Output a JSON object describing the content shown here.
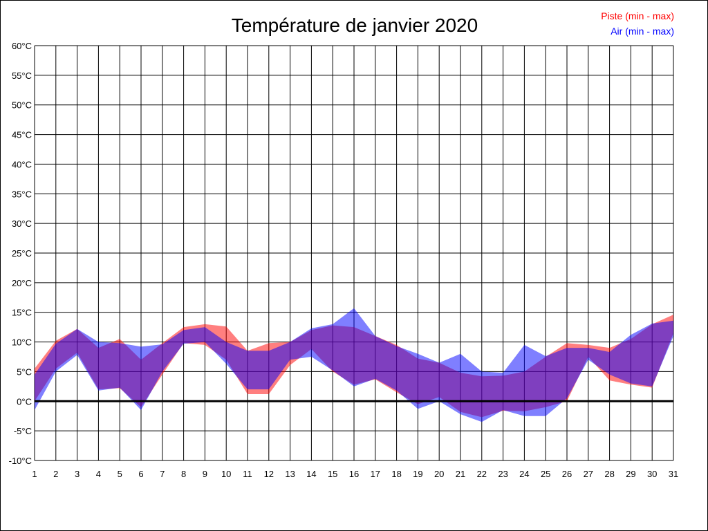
{
  "chart_data": {
    "type": "area",
    "title": "Température de janvier 2020",
    "xlabel": "",
    "ylabel": "",
    "x": [
      1,
      2,
      3,
      4,
      5,
      6,
      7,
      8,
      9,
      10,
      11,
      12,
      13,
      14,
      15,
      16,
      17,
      18,
      19,
      20,
      21,
      22,
      23,
      24,
      25,
      26,
      27,
      28,
      29,
      30,
      31
    ],
    "ylim": [
      -10,
      60
    ],
    "yticks": [
      -10,
      -5,
      0,
      5,
      10,
      15,
      20,
      25,
      30,
      35,
      40,
      45,
      50,
      55,
      60
    ],
    "ytick_suffix": "°C",
    "grid": true,
    "legend_position": "top-right",
    "series": [
      {
        "name": "Piste (min - max)",
        "color": "#ff0000",
        "max": [
          5.5,
          10.2,
          12.2,
          9,
          10.5,
          7,
          9.8,
          12.5,
          13,
          12.6,
          8.5,
          9.8,
          10,
          12,
          12.8,
          12.5,
          11,
          9.5,
          7.2,
          6.5,
          4.8,
          4.2,
          4.3,
          5,
          7.5,
          9.8,
          9.5,
          9,
          10.5,
          13,
          14.6
        ],
        "min": [
          0,
          5.5,
          8.2,
          2,
          2.2,
          -1,
          4.5,
          9.8,
          9.5,
          7,
          1.2,
          1.2,
          6.1,
          8.8,
          5,
          2.8,
          3.7,
          1.5,
          -0.5,
          0.7,
          -1.8,
          -2.7,
          -1.6,
          -1.7,
          -1,
          0,
          7.5,
          3.5,
          2.8,
          2.3,
          11.5
        ]
      },
      {
        "name": "Air (min - max)",
        "color": "#0000ff",
        "max": [
          4.5,
          9.7,
          12.2,
          10,
          9.8,
          9.2,
          9.6,
          12,
          12.5,
          10,
          8.5,
          8.5,
          10,
          12.3,
          13,
          15.7,
          11,
          9.3,
          8,
          6.5,
          8,
          5,
          4.8,
          9.5,
          7.6,
          9,
          9,
          8.3,
          11.2,
          13.1,
          13.6
        ],
        "min": [
          -1.5,
          5,
          7.8,
          1.8,
          2.3,
          -1.5,
          5,
          9.7,
          10,
          6.3,
          2,
          2,
          7,
          7.5,
          5.2,
          2.5,
          3.8,
          1.8,
          -1.3,
          0,
          -2.2,
          -3.5,
          -1.5,
          -2.5,
          -2.5,
          0.5,
          7,
          4.5,
          3,
          2.5,
          11
        ]
      }
    ]
  }
}
